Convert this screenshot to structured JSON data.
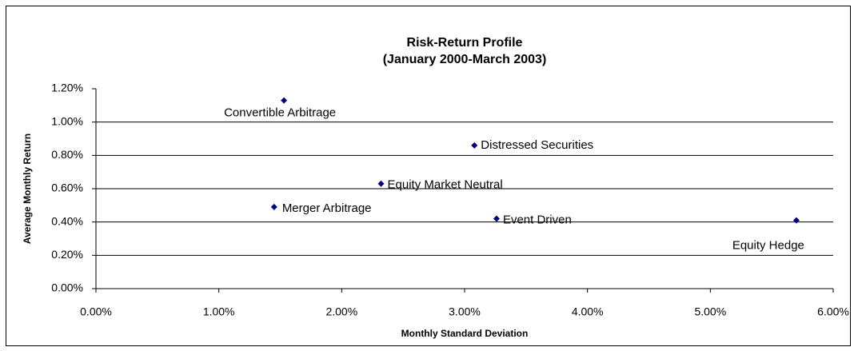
{
  "chart_data": {
    "type": "scatter",
    "title": "Risk-Return Profile",
    "subtitle": "(January 2000-March 2003)",
    "x_label": "Monthly Standard Deviation",
    "y_label": "Average Monthly Return",
    "color": "#000080",
    "grid": true,
    "labels": [
      "Convertible Arbitrage",
      "Distressed Securities",
      "Equity Market Neutral",
      "Merger Arbitrage",
      "Event Driven",
      "Equity Hedge"
    ],
    "x": [
      1.53,
      3.08,
      2.32,
      1.45,
      3.26,
      5.7
    ],
    "y": [
      1.13,
      0.86,
      0.63,
      0.49,
      0.42,
      0.41
    ],
    "xlim": [
      0,
      6
    ],
    "ylim": [
      0,
      1.2
    ],
    "xticks": [
      {
        "value": 0,
        "label": "0.00%"
      },
      {
        "value": 1,
        "label": "1.00%"
      },
      {
        "value": 2,
        "label": "2.00%"
      },
      {
        "value": 3,
        "label": "3.00%"
      },
      {
        "value": 4,
        "label": "4.00%"
      },
      {
        "value": 5,
        "label": "5.00%"
      },
      {
        "value": 6,
        "label": "6.00%"
      }
    ],
    "yticks": [
      {
        "value": 0,
        "label": "0.00%"
      },
      {
        "value": 0.2,
        "label": "0.20%"
      },
      {
        "value": 0.4,
        "label": "0.40%"
      },
      {
        "value": 0.6,
        "label": "0.60%"
      },
      {
        "value": 0.8,
        "label": "0.80%"
      },
      {
        "value": 1.0,
        "label": "1.00%"
      },
      {
        "value": 1.2,
        "label": "1.20%"
      }
    ]
  }
}
